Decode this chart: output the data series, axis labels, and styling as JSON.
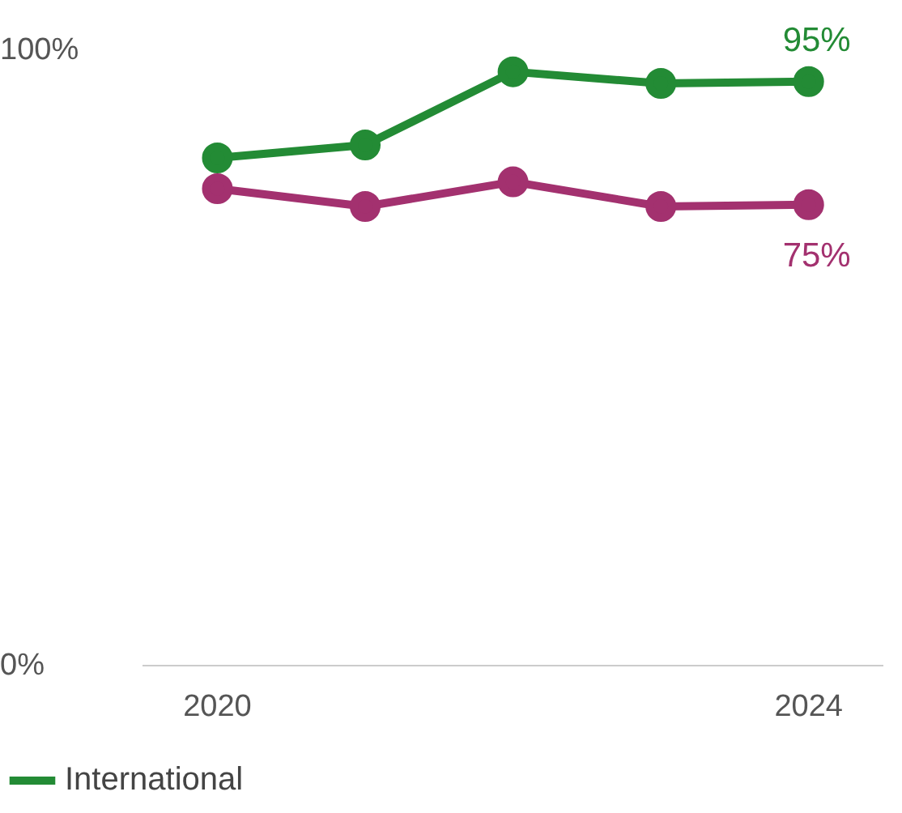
{
  "chart_data": {
    "type": "line",
    "x": [
      2020,
      2021,
      2022,
      2023,
      2024
    ],
    "series": [
      {
        "name": "International",
        "color": "#238b35",
        "values": [
          82.6,
          84.7,
          96.6,
          94.7,
          95
        ],
        "value_labels": [
          null,
          null,
          null,
          null,
          "95%"
        ]
      },
      {
        "color": "#a3316f",
        "values": [
          77.6,
          74.7,
          78.7,
          74.7,
          75
        ],
        "value_labels": [
          null,
          null,
          null,
          null,
          "75%"
        ]
      }
    ],
    "xlim": [
      2019.5,
      2024.5
    ],
    "xticks": [
      2020,
      2024
    ],
    "ylim": [
      0,
      100
    ],
    "yticks": [
      {
        "value": 0,
        "label": "0%"
      },
      {
        "value": 100,
        "label": "100%"
      }
    ],
    "grid": false,
    "legend": "bottom left",
    "marker": "circle",
    "line_style": "solid"
  }
}
